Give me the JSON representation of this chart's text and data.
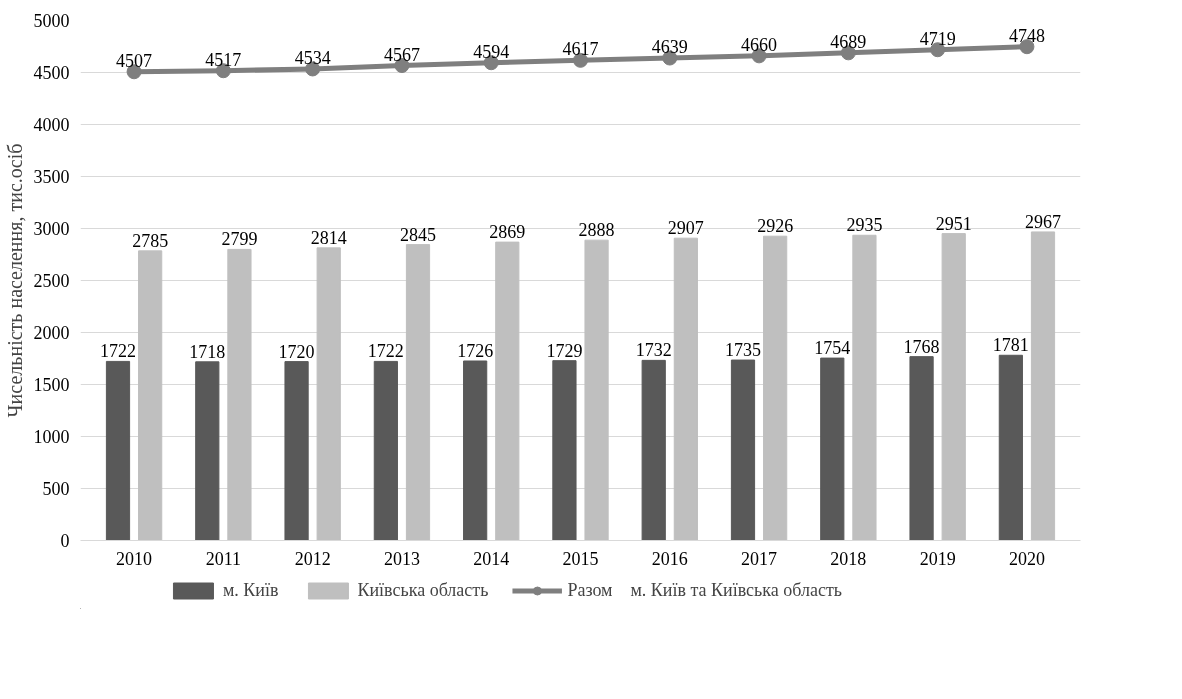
{
  "chart_data": {
    "type": "bar",
    "ylabel": "Чисельність населення, тис.ociб",
    "categories": [
      "2010",
      "2011",
      "2012",
      "2013",
      "2014",
      "2015",
      "2016",
      "2017",
      "2018",
      "2019",
      "2020"
    ],
    "series": [
      {
        "name": "м. Київ",
        "color": "#595959",
        "values": [
          1722,
          1718,
          1720,
          1722,
          1726,
          1729,
          1732,
          1735,
          1754,
          1768,
          1781
        ]
      },
      {
        "name": "Київська область",
        "color": "#bfbfbf",
        "values": [
          2785,
          2799,
          2814,
          2845,
          2869,
          2888,
          2907,
          2926,
          2935,
          2951,
          2967
        ]
      },
      {
        "name": "Разом    м. Київ та Київська область",
        "type": "line",
        "color": "#7f7f7f",
        "marker": "circle",
        "values": [
          4507,
          4517,
          4534,
          4567,
          4594,
          4617,
          4639,
          4660,
          4689,
          4719,
          4748
        ]
      }
    ],
    "ylim": [
      0,
      5000
    ],
    "yticks": [
      0,
      500,
      1000,
      1500,
      2000,
      2500,
      3000,
      3500,
      4000,
      4500,
      5000
    ],
    "grid": "y",
    "legend": "bottom",
    "data_labels": true
  }
}
